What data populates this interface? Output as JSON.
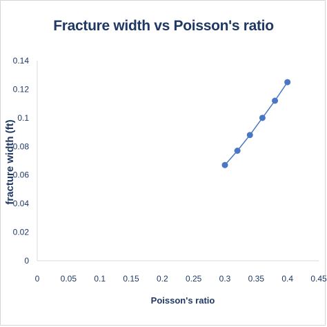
{
  "chart_data": {
    "type": "scatter",
    "title": "Fracture width  vs Poisson's ratio",
    "xlabel": "Poisson's ratio",
    "ylabel": "fracture width (ft)",
    "xlim": [
      0,
      0.45
    ],
    "ylim": [
      0,
      0.14
    ],
    "x_ticks": [
      "0",
      "0.05",
      "0.1",
      "0.15",
      "0.2",
      "0.25",
      "0.3",
      "0.35",
      "0.4",
      "0.45"
    ],
    "y_ticks": [
      "0",
      "0.02",
      "0.04",
      "0.06",
      "0.08",
      "0.1",
      "0.12",
      "0.14"
    ],
    "grid": false,
    "series": [
      {
        "x": [
          0.3,
          0.32,
          0.34,
          0.36,
          0.38,
          0.4
        ],
        "y": [
          0.067,
          0.077,
          0.088,
          0.1,
          0.112,
          0.125
        ],
        "color": "#4a76c4",
        "line": true
      }
    ]
  }
}
